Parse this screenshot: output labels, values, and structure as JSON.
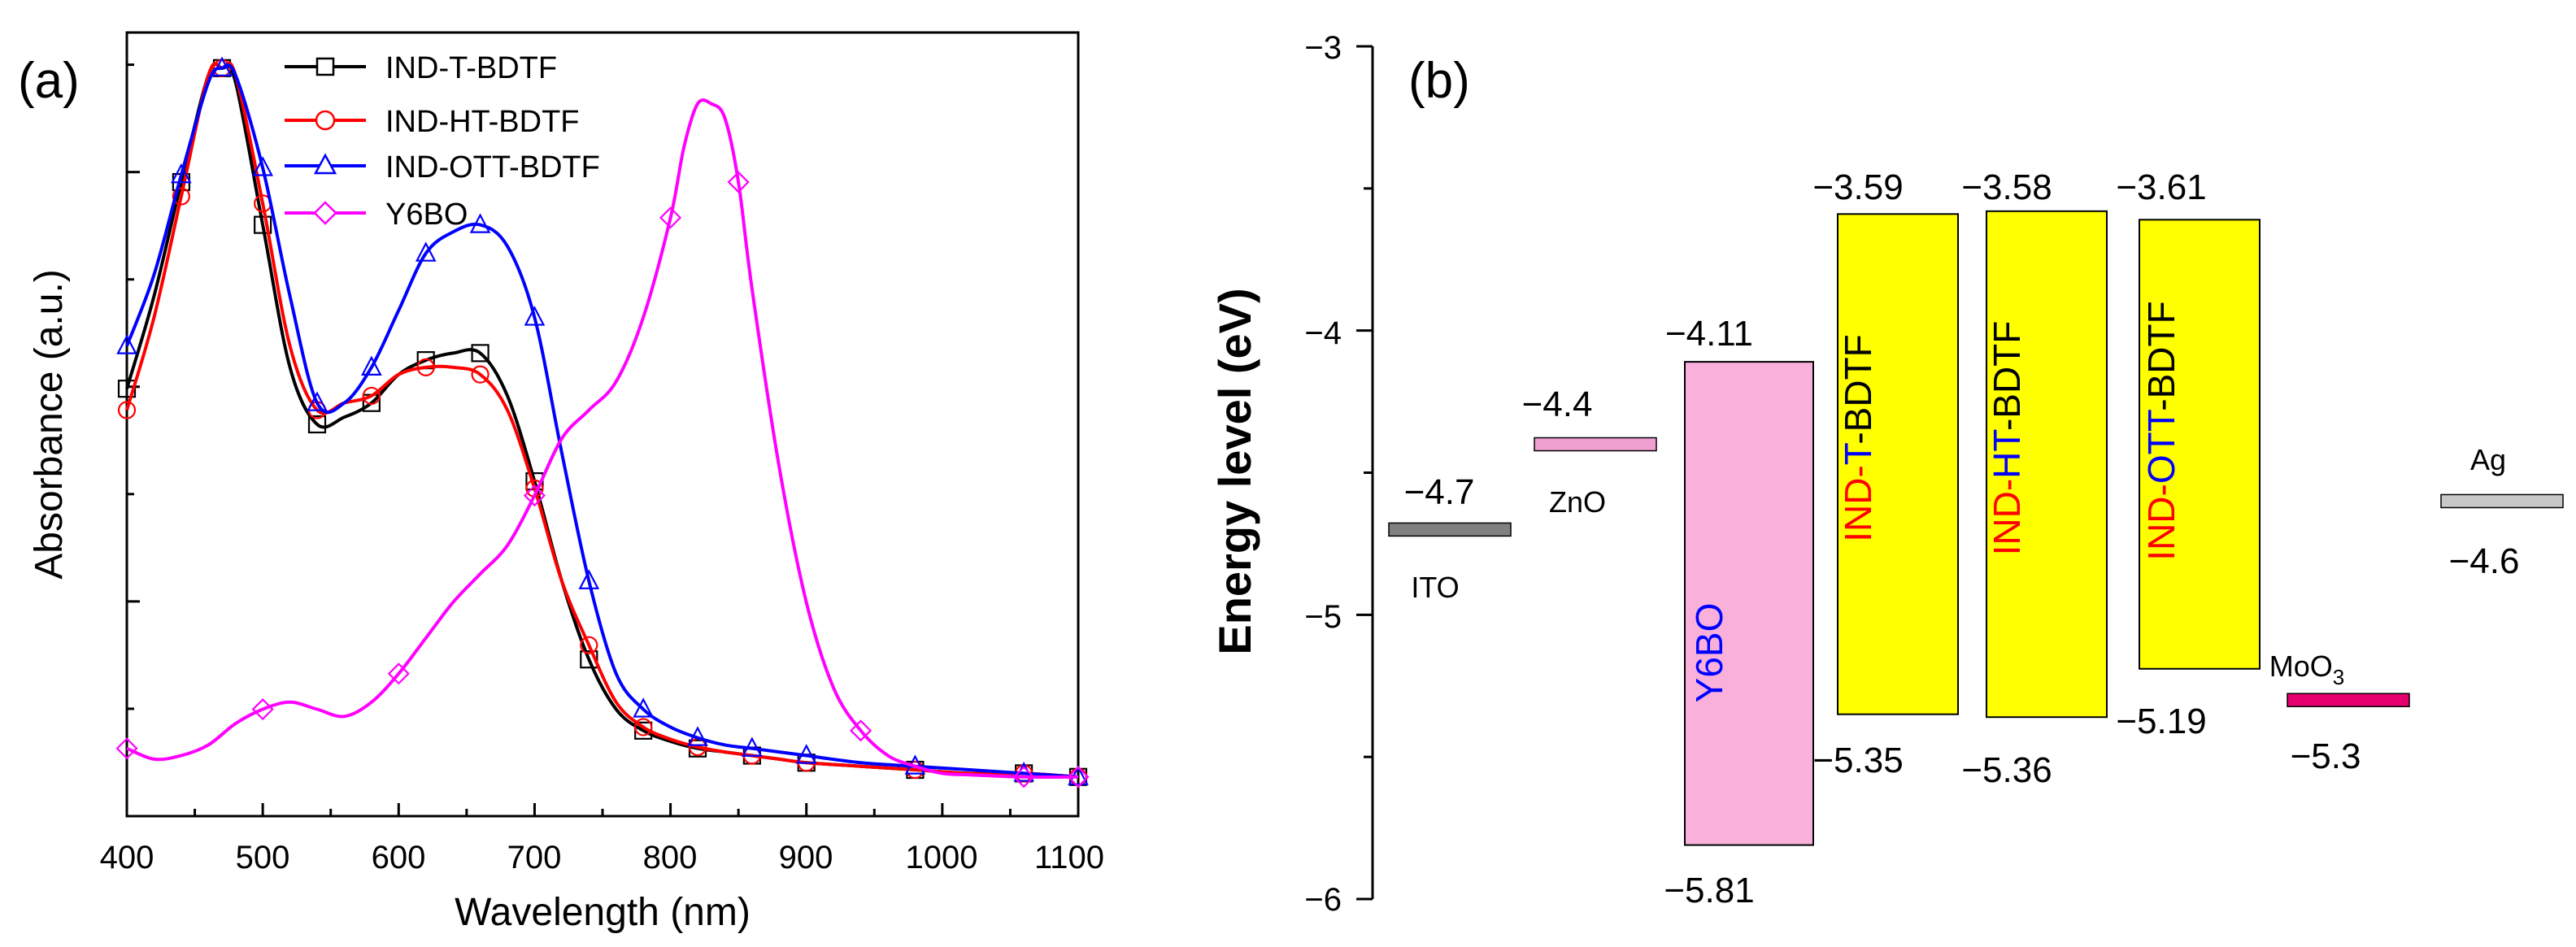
{
  "panel_a": {
    "label": "(a)",
    "chart_data": {
      "type": "line",
      "title": "",
      "xlabel": "Wavelength (nm)",
      "ylabel": "Absorbance (a.u.)",
      "xlim": [
        400,
        1100
      ],
      "ylim": [
        -0.05,
        1.05
      ],
      "yticks_labeled": false,
      "xticks": [
        400,
        500,
        600,
        700,
        800,
        900,
        1000,
        1100
      ],
      "xtick_labels": [
        "400",
        "500",
        "600",
        "700",
        "800",
        "900",
        "1000",
        "1100"
      ],
      "legend_position": "top-center",
      "series": [
        {
          "name": "IND-T-BDTF",
          "color": "#000000",
          "marker": "square",
          "x": [
            400,
            420,
            440,
            460,
            470,
            480,
            500,
            520,
            540,
            560,
            580,
            600,
            620,
            640,
            660,
            680,
            700,
            720,
            740,
            760,
            780,
            800,
            820,
            840,
            860,
            880,
            900,
            940,
            980,
            1020,
            1060,
            1100
          ],
          "y": [
            0.55,
            0.68,
            0.84,
            0.99,
            1.0,
            0.98,
            0.78,
            0.58,
            0.5,
            0.51,
            0.53,
            0.57,
            0.59,
            0.6,
            0.6,
            0.54,
            0.42,
            0.28,
            0.17,
            0.1,
            0.07,
            0.055,
            0.045,
            0.04,
            0.035,
            0.03,
            0.025,
            0.02,
            0.015,
            0.01,
            0.01,
            0.005
          ]
        },
        {
          "name": "IND-HT-BDTF",
          "color": "#ff0000",
          "marker": "circle",
          "x": [
            400,
            420,
            440,
            460,
            470,
            480,
            500,
            520,
            540,
            560,
            580,
            600,
            620,
            640,
            660,
            680,
            700,
            720,
            740,
            760,
            780,
            800,
            820,
            840,
            860,
            880,
            900,
            940,
            980,
            1020,
            1060,
            1100
          ],
          "y": [
            0.52,
            0.65,
            0.82,
            0.99,
            1.0,
            0.99,
            0.81,
            0.61,
            0.52,
            0.53,
            0.54,
            0.57,
            0.58,
            0.58,
            0.57,
            0.52,
            0.41,
            0.28,
            0.19,
            0.11,
            0.075,
            0.058,
            0.047,
            0.04,
            0.035,
            0.03,
            0.025,
            0.02,
            0.015,
            0.01,
            0.01,
            0.005
          ]
        },
        {
          "name": "IND-OTT-BDTF",
          "color": "#0000ff",
          "marker": "triangle",
          "x": [
            400,
            420,
            440,
            460,
            470,
            480,
            500,
            520,
            540,
            560,
            580,
            600,
            620,
            640,
            660,
            680,
            700,
            720,
            740,
            760,
            780,
            800,
            820,
            840,
            860,
            880,
            900,
            940,
            980,
            1020,
            1060,
            1100
          ],
          "y": [
            0.61,
            0.71,
            0.85,
            0.98,
            1.0,
            0.99,
            0.86,
            0.68,
            0.53,
            0.53,
            0.58,
            0.66,
            0.74,
            0.77,
            0.78,
            0.75,
            0.65,
            0.46,
            0.28,
            0.15,
            0.1,
            0.075,
            0.06,
            0.05,
            0.045,
            0.04,
            0.035,
            0.025,
            0.02,
            0.015,
            0.01,
            0.005
          ]
        },
        {
          "name": "Y6BO",
          "color": "#ff00ff",
          "marker": "diamond",
          "x": [
            400,
            420,
            440,
            460,
            480,
            500,
            520,
            540,
            560,
            580,
            600,
            620,
            640,
            660,
            680,
            700,
            720,
            740,
            760,
            780,
            800,
            810,
            820,
            830,
            840,
            850,
            860,
            880,
            900,
            920,
            940,
            960,
            980,
            1000,
            1020,
            1060,
            1100
          ],
          "y": [
            0.045,
            0.03,
            0.035,
            0.05,
            0.08,
            0.1,
            0.11,
            0.1,
            0.09,
            0.11,
            0.15,
            0.2,
            0.25,
            0.29,
            0.33,
            0.4,
            0.48,
            0.52,
            0.56,
            0.65,
            0.79,
            0.89,
            0.95,
            0.95,
            0.93,
            0.84,
            0.69,
            0.44,
            0.25,
            0.13,
            0.07,
            0.035,
            0.02,
            0.01,
            0.008,
            0.005,
            0.005
          ]
        }
      ]
    }
  },
  "panel_b": {
    "label": "(b)",
    "chart_data": {
      "type": "bar",
      "subtype": "energy-level-diagram",
      "title": "",
      "ylabel": "Energy level (eV)",
      "ylim": [
        -6,
        -3
      ],
      "yticks": [
        -6,
        -5,
        -4,
        -3
      ],
      "ytick_labels": [
        "−6",
        "−5",
        "−4",
        "−3"
      ],
      "levels": [
        {
          "name": "ITO",
          "value": -4.7,
          "value_label": "−4.7",
          "color": "#808080"
        },
        {
          "name": "ZnO",
          "value": -4.4,
          "value_label": "−4.4",
          "color": "#f0a0d0"
        },
        {
          "name": "MoO3",
          "name_main": "MoO",
          "name_sub": "3",
          "value": -5.3,
          "value_label": "−5.3",
          "color": "#e6006e"
        },
        {
          "name": "Ag",
          "value": -4.6,
          "value_label": "−4.6",
          "color": "#c8c8c8"
        }
      ],
      "boxes": [
        {
          "name": "Y6BO",
          "lumo": -4.11,
          "homo": -5.81,
          "lumo_label": "−4.11",
          "homo_label": "−5.81",
          "fill": "#f9b1dc",
          "label_parts": [
            {
              "text": "Y6BO",
              "color": "#0000ff"
            }
          ]
        },
        {
          "name": "IND-T-BDTF",
          "lumo": -3.59,
          "homo": -5.35,
          "lumo_label": "−3.59",
          "homo_label": "−5.35",
          "fill": "#ffff00",
          "label_parts": [
            {
              "text": "IND-",
              "color": "#ff0000"
            },
            {
              "text": "T",
              "color": "#0000ff"
            },
            {
              "text": "-BDTF",
              "color": "#000000"
            }
          ]
        },
        {
          "name": "IND-HT-BDTF",
          "lumo": -3.58,
          "homo": -5.36,
          "lumo_label": "−3.58",
          "homo_label": "−5.36",
          "fill": "#ffff00",
          "label_parts": [
            {
              "text": "IND-",
              "color": "#ff0000"
            },
            {
              "text": "HT",
              "color": "#0000ff"
            },
            {
              "text": "-BDTF",
              "color": "#000000"
            }
          ]
        },
        {
          "name": "IND-OTT-BDTF",
          "lumo": -3.61,
          "homo": -5.19,
          "lumo_label": "−3.61",
          "homo_label": "−5.19",
          "fill": "#ffff00",
          "label_parts": [
            {
              "text": "IND-",
              "color": "#ff0000"
            },
            {
              "text": "OTT",
              "color": "#0000ff"
            },
            {
              "text": "-BDTF",
              "color": "#000000"
            }
          ]
        }
      ]
    }
  }
}
